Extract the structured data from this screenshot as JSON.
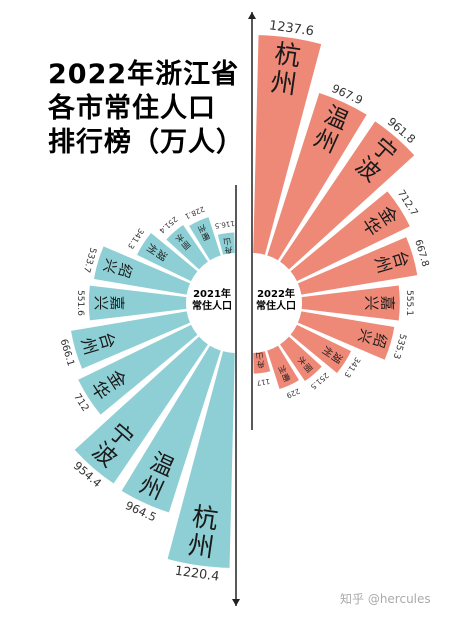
{
  "title_lines": [
    "2022年浙江省",
    "各市常住人口",
    "排行榜（万人）"
  ],
  "watermark": "知乎 @hercules",
  "colors": {
    "year_2022": "#EE8977",
    "year_2021": "#8ECFD5",
    "axis": "#222222"
  },
  "chart_data": {
    "type": "bar",
    "title": "2022年浙江省各市常住人口排行榜（万人）",
    "unit": "万人",
    "series": [
      {
        "name": "2022年常住人口",
        "categories": [
          "杭州",
          "温州",
          "宁波",
          "金华",
          "台州",
          "嘉兴",
          "绍兴",
          "湖州",
          "丽水",
          "衢州",
          "舟山"
        ],
        "values": [
          1237.6,
          967.9,
          961.8,
          712.7,
          667.8,
          555.1,
          535.3,
          341.3,
          251.5,
          229,
          117
        ]
      },
      {
        "name": "2021年常住人口",
        "categories": [
          "杭州",
          "温州",
          "宁波",
          "金华",
          "台州",
          "嘉兴",
          "绍兴",
          "湖州",
          "丽水",
          "衢州",
          "舟山"
        ],
        "values": [
          1220.4,
          964.5,
          954.4,
          712,
          666.1,
          551.6,
          533.7,
          341.3,
          251.4,
          228.1,
          116.5
        ]
      }
    ]
  }
}
